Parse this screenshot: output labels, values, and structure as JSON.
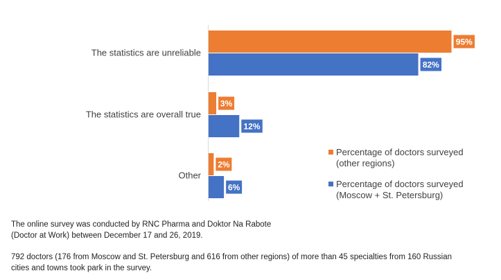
{
  "chart_data": {
    "type": "bar",
    "orientation": "horizontal",
    "categories": [
      "The statistics are unreliable",
      "The statistics are overall true",
      "Other"
    ],
    "series": [
      {
        "name": "Percentage of doctors surveyed (other regions)",
        "values": [
          95,
          3,
          2
        ],
        "color": "#ED7D31"
      },
      {
        "name": "Percentage of doctors surveyed (Moscow + St. Petersburg)",
        "values": [
          82,
          12,
          6
        ],
        "color": "#4472C4"
      }
    ],
    "data_labels": {
      "series0": [
        "95%",
        "3%",
        "2%"
      ],
      "series1": [
        "82%",
        "12%",
        "6%"
      ]
    },
    "xlim": [
      0,
      100
    ],
    "grid": false,
    "legend_position": "right"
  },
  "legend": {
    "item1_line1": "Percentage of doctors surveyed",
    "item1_line2": "(other regions)",
    "item2_line1": "Percentage of doctors surveyed",
    "item2_line2": "(Moscow + St. Petersburg)"
  },
  "footnotes": {
    "line1": "The online survey was conducted by RNC Pharma and Doktor Na Rabote",
    "line2": "(Doctor at Work) between December 17 and 26, 2019.",
    "line3": "792 doctors (176 from Moscow and St. Petersburg and 616 from other regions) of more than 45 specialties from 160 Russian",
    "line4": "cities and towns took park in the survey."
  }
}
